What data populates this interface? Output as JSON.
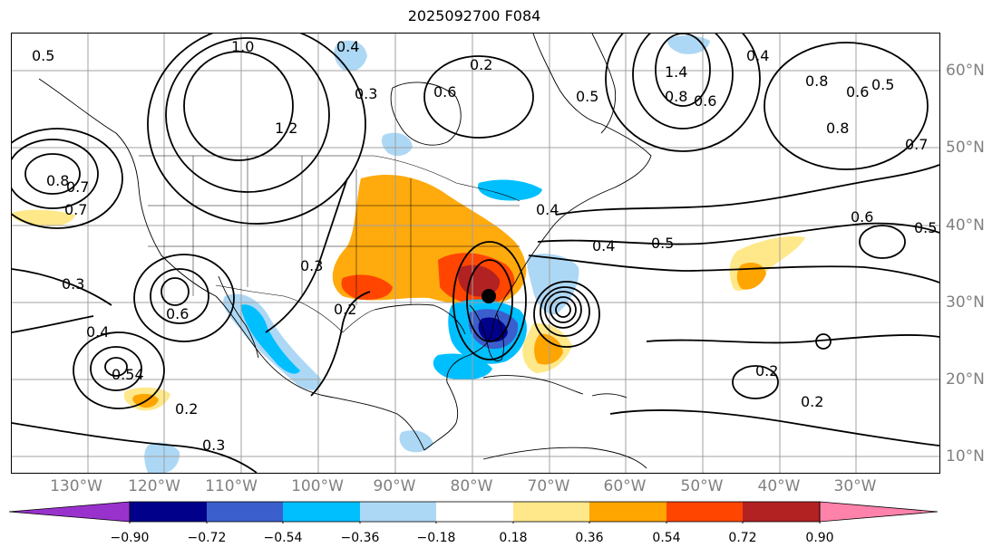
{
  "title": "2025092700 F084",
  "lon_labels": [
    "130°W",
    "120°W",
    "110°W",
    "100°W",
    "90°W",
    "80°W",
    "70°W",
    "60°W",
    "50°W",
    "40°W",
    "30°W"
  ],
  "lat_labels": [
    "60°N",
    "50°N",
    "40°N",
    "30°N",
    "20°N",
    "10°N"
  ],
  "colorbar": {
    "labels": [
      "−0.90",
      "−0.72",
      "−0.54",
      "−0.36",
      "−0.18",
      "0.18",
      "0.36",
      "0.54",
      "0.72",
      "0.90"
    ],
    "colors": [
      "#9932cc",
      "#00008b",
      "#3a5fcd",
      "#00bfff",
      "#add8f5",
      "#ffffff",
      "#ffe88a",
      "#ffa500",
      "#ff4500",
      "#b22222",
      "#ff82ab"
    ]
  },
  "contour_labels": [
    "0.5",
    "0.4",
    "0.3",
    "0.2",
    "0.6",
    "0.7",
    "0.8",
    "1.0",
    "1.2",
    "1.4",
    "0.2",
    "0.3",
    "0.4",
    "0.5",
    "0.6",
    "0.8",
    "0.6",
    "0.7",
    "0.8",
    "0.5",
    "0.4",
    "0.3",
    "0.2",
    "0.2",
    "0.5",
    "0.4",
    "0.6",
    "0.5",
    "0.7",
    "0.6",
    "0.8",
    "0.3",
    "0.4",
    "0.2",
    "0.54"
  ],
  "legend": {
    "colors": {
      "land_outline": "#000000",
      "contour": "#000000",
      "grid": "#a0a0a0",
      "tick_label": "#808080"
    }
  }
}
